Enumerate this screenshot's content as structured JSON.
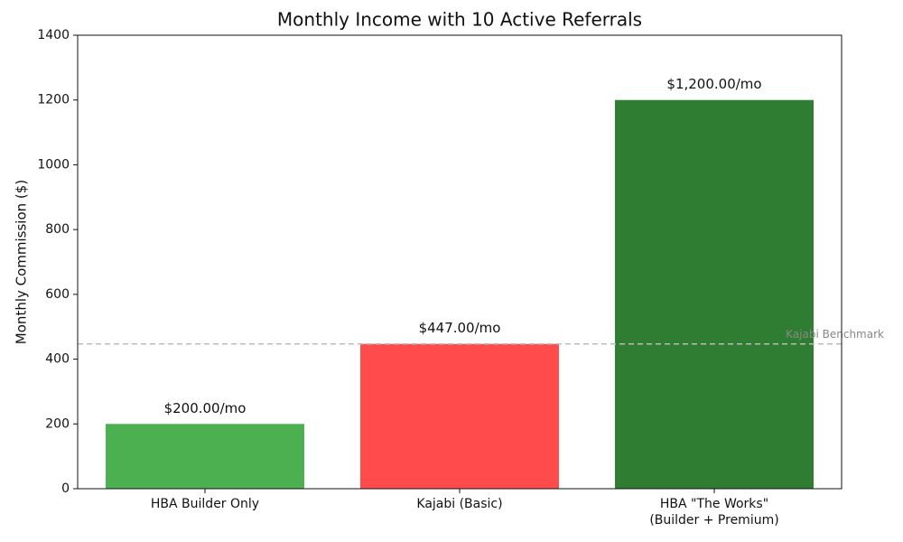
{
  "chart_data": {
    "type": "bar",
    "title": "Monthly Income with 10 Active Referrals",
    "y_label": "Monthly Commission ($)",
    "categories": [
      "HBA Builder Only",
      "Kajabi (Basic)",
      "HBA \"The Works\"\n(Builder + Premium)"
    ],
    "values": [
      200,
      447,
      1200
    ],
    "value_labels": [
      "$200.00/mo",
      "$447.00/mo",
      "$1,200.00/mo"
    ],
    "colors": [
      "#4caf50",
      "#ff4b4b",
      "#2e7d32"
    ],
    "ylim": [
      0,
      1400
    ],
    "yticks": [
      0,
      200,
      400,
      600,
      800,
      1000,
      1200,
      1400
    ],
    "grid": false,
    "reference_line": {
      "value": 447,
      "label": "Kajabi Benchmark",
      "color": "#bbbbbb"
    }
  }
}
